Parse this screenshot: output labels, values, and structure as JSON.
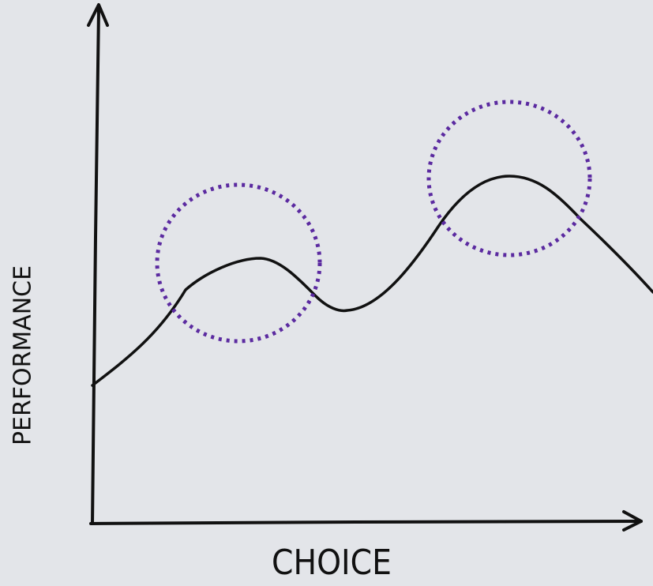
{
  "chart_data": {
    "type": "line",
    "x_label": "CHOICE",
    "y_label": "PERFORMANCE"
  }
}
